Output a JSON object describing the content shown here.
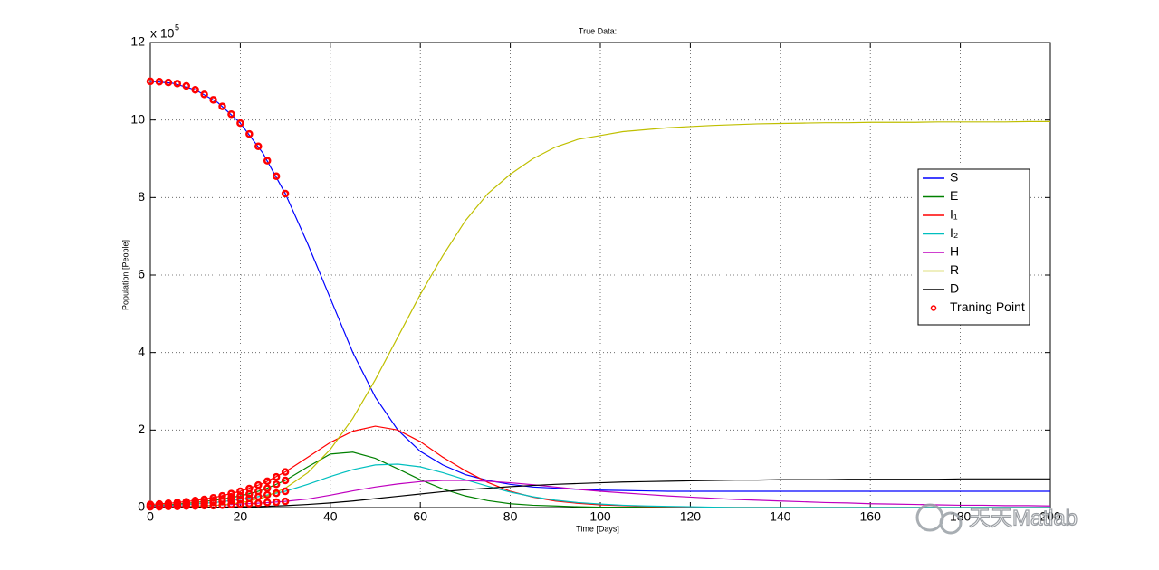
{
  "chart_data": {
    "type": "line",
    "title": "True Data:",
    "x_label": "Time [Days]",
    "y_label": "Population [People]",
    "y_multiplier": {
      "base": "x 10",
      "exponent": "5"
    },
    "xlim": [
      0,
      200
    ],
    "xticks": [
      0,
      20,
      40,
      60,
      80,
      100,
      120,
      140,
      160,
      180,
      200
    ],
    "ylim": [
      0,
      12
    ],
    "yticks": [
      0,
      2,
      4,
      6,
      8,
      10,
      12
    ],
    "grid": true,
    "legend_position": "right",
    "x": [
      0,
      5,
      10,
      15,
      20,
      25,
      30,
      35,
      40,
      45,
      50,
      55,
      60,
      65,
      70,
      75,
      80,
      85,
      90,
      95,
      100,
      105,
      110,
      115,
      120,
      125,
      130,
      135,
      140,
      145,
      150,
      155,
      160,
      165,
      170,
      175,
      180,
      185,
      190,
      195,
      200
    ],
    "series": [
      {
        "name": "S",
        "color": "#0000ff",
        "values": [
          11.0,
          10.95,
          10.78,
          10.45,
          9.92,
          9.15,
          8.1,
          6.8,
          5.4,
          4.0,
          2.85,
          2.0,
          1.45,
          1.1,
          0.85,
          0.7,
          0.6,
          0.53,
          0.5,
          0.47,
          0.45,
          0.44,
          0.43,
          0.42,
          0.42,
          0.42,
          0.42,
          0.42,
          0.42,
          0.42,
          0.42,
          0.42,
          0.42,
          0.42,
          0.42,
          0.42,
          0.42,
          0.42,
          0.42,
          0.42,
          0.42
        ]
      },
      {
        "name": "E",
        "color": "#008000",
        "values": [
          0.05,
          0.08,
          0.13,
          0.2,
          0.3,
          0.45,
          0.7,
          1.05,
          1.38,
          1.43,
          1.27,
          1.0,
          0.72,
          0.48,
          0.3,
          0.18,
          0.1,
          0.06,
          0.04,
          0.02,
          0.01,
          0.01,
          0.01,
          0,
          0,
          0,
          0,
          0,
          0,
          0,
          0,
          0,
          0,
          0,
          0,
          0,
          0,
          0,
          0,
          0,
          0
        ]
      },
      {
        "name": "I₁",
        "color": "#ff0000",
        "values": [
          0.08,
          0.12,
          0.18,
          0.28,
          0.42,
          0.62,
          0.92,
          1.3,
          1.68,
          1.97,
          2.1,
          2.0,
          1.7,
          1.3,
          0.95,
          0.65,
          0.42,
          0.27,
          0.17,
          0.11,
          0.07,
          0.05,
          0.03,
          0.02,
          0.01,
          0,
          0,
          0,
          0,
          0,
          0,
          0,
          0,
          0,
          0,
          0,
          0,
          0,
          0,
          0,
          0
        ]
      },
      {
        "name": "I₂",
        "color": "#00bfbf",
        "values": [
          0.04,
          0.06,
          0.09,
          0.14,
          0.21,
          0.3,
          0.42,
          0.6,
          0.8,
          0.98,
          1.1,
          1.12,
          1.05,
          0.9,
          0.72,
          0.55,
          0.4,
          0.28,
          0.19,
          0.13,
          0.09,
          0.06,
          0.04,
          0.03,
          0.02,
          0.01,
          0,
          0,
          0,
          0,
          0,
          0,
          0,
          0,
          0,
          0,
          0,
          0,
          0,
          0,
          0
        ]
      },
      {
        "name": "H",
        "color": "#bf00bf",
        "values": [
          0.02,
          0.03,
          0.04,
          0.06,
          0.09,
          0.12,
          0.16,
          0.22,
          0.32,
          0.43,
          0.53,
          0.61,
          0.67,
          0.7,
          0.7,
          0.68,
          0.64,
          0.59,
          0.53,
          0.47,
          0.42,
          0.38,
          0.34,
          0.3,
          0.27,
          0.24,
          0.21,
          0.19,
          0.17,
          0.15,
          0.13,
          0.12,
          0.1,
          0.09,
          0.08,
          0.07,
          0.06,
          0.06,
          0.05,
          0.05,
          0.04
        ]
      },
      {
        "name": "R",
        "color": "#bfbf00",
        "values": [
          0,
          0.01,
          0.03,
          0.06,
          0.12,
          0.25,
          0.5,
          0.9,
          1.5,
          2.3,
          3.3,
          4.4,
          5.5,
          6.5,
          7.4,
          8.1,
          8.6,
          9.0,
          9.3,
          9.5,
          9.6,
          9.7,
          9.75,
          9.8,
          9.83,
          9.86,
          9.88,
          9.9,
          9.91,
          9.92,
          9.93,
          9.93,
          9.94,
          9.94,
          9.94,
          9.95,
          9.95,
          9.95,
          9.95,
          9.96,
          9.96
        ]
      },
      {
        "name": "D",
        "color": "#000000",
        "values": [
          0,
          0,
          0.01,
          0.01,
          0.02,
          0.03,
          0.05,
          0.08,
          0.12,
          0.17,
          0.23,
          0.29,
          0.35,
          0.41,
          0.46,
          0.5,
          0.54,
          0.57,
          0.6,
          0.62,
          0.64,
          0.66,
          0.67,
          0.68,
          0.69,
          0.7,
          0.71,
          0.71,
          0.72,
          0.72,
          0.72,
          0.73,
          0.73,
          0.73,
          0.73,
          0.73,
          0.74,
          0.74,
          0.74,
          0.74,
          0.74
        ]
      }
    ],
    "training_points": {
      "name": "Traning Point",
      "color": "#ff0000",
      "x": [
        0,
        2,
        4,
        6,
        8,
        10,
        12,
        14,
        16,
        18,
        20,
        22,
        24,
        26,
        28,
        30
      ],
      "values": [
        [
          11.0,
          10.99,
          10.97,
          10.94,
          10.88,
          10.78,
          10.66,
          10.52,
          10.35,
          10.15,
          9.92,
          9.64,
          9.32,
          8.95,
          8.55,
          8.1
        ],
        [
          0.08,
          0.09,
          0.11,
          0.13,
          0.15,
          0.18,
          0.21,
          0.25,
          0.3,
          0.36,
          0.42,
          0.49,
          0.58,
          0.68,
          0.79,
          0.92
        ],
        [
          0.05,
          0.06,
          0.07,
          0.09,
          0.1,
          0.13,
          0.15,
          0.18,
          0.22,
          0.26,
          0.3,
          0.35,
          0.42,
          0.5,
          0.6,
          0.7
        ],
        [
          0.04,
          0.05,
          0.05,
          0.06,
          0.08,
          0.09,
          0.11,
          0.13,
          0.16,
          0.18,
          0.21,
          0.24,
          0.28,
          0.33,
          0.37,
          0.42
        ],
        [
          0.02,
          0.02,
          0.03,
          0.03,
          0.04,
          0.04,
          0.05,
          0.05,
          0.06,
          0.08,
          0.09,
          0.1,
          0.11,
          0.13,
          0.14,
          0.16
        ]
      ]
    }
  },
  "watermark": "天天Matlab"
}
